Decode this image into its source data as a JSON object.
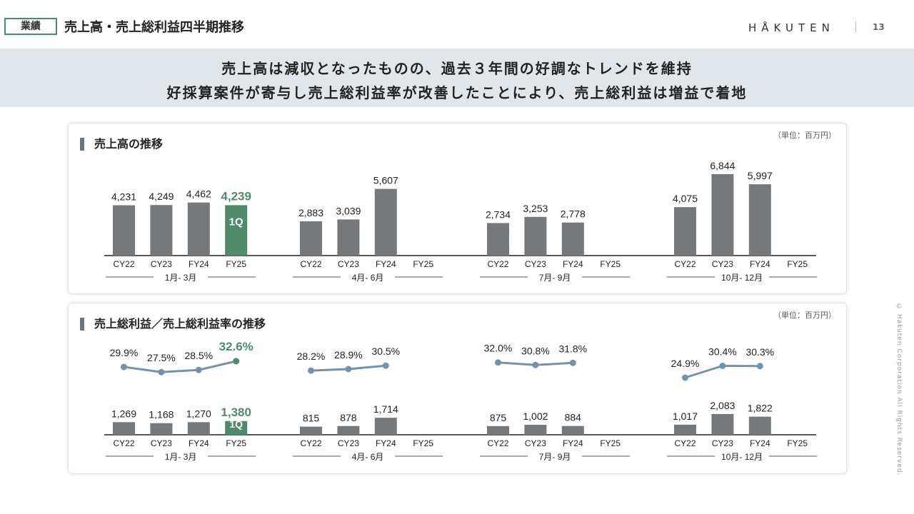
{
  "header": {
    "tag": "業績",
    "title": "売上高・売上総利益四半期推移",
    "logo": "HÅKUTEN",
    "page_number": "13"
  },
  "banner": {
    "line1": "売上高は減収となったものの、過去３年間の好調なトレンドを維持",
    "line2": "好採算案件が寄与し売上総利益率が改善したことにより、売上総利益は増益で着地"
  },
  "panel_sales": {
    "title": "売上高の推移",
    "unit": "（単位：百万円）"
  },
  "panel_profit": {
    "title": "売上総利益／売上総利益率の推移",
    "unit": "（単位：百万円）"
  },
  "copyright": "© Hakuten Corporation All Rights Reserved.",
  "colors": {
    "bar": "#75797c",
    "highlight": "#4f8a6c",
    "line": "#7593a8",
    "accent_border": "#4c8a6b"
  },
  "chart_data": [
    {
      "type": "bar",
      "title": "売上高の推移",
      "unit": "（単位：百万円）",
      "groups": [
        {
          "label": "1月- 3月",
          "categories": [
            "CY22",
            "CY23",
            "FY24",
            "FY25"
          ],
          "values": [
            4231,
            4249,
            4462,
            4239
          ],
          "labels": [
            "4,231",
            "4,249",
            "4,462",
            "4,239"
          ],
          "highlight_index": 3,
          "highlight_badge": "1Q"
        },
        {
          "label": "4月- 6月",
          "categories": [
            "CY22",
            "CY23",
            "FY24",
            "FY25"
          ],
          "values": [
            2883,
            3039,
            5607,
            null
          ],
          "labels": [
            "2,883",
            "3,039",
            "5,607",
            ""
          ]
        },
        {
          "label": "7月- 9月",
          "categories": [
            "CY22",
            "CY23",
            "FY24",
            "FY25"
          ],
          "values": [
            2734,
            3253,
            2778,
            null
          ],
          "labels": [
            "2,734",
            "3,253",
            "2,778",
            ""
          ]
        },
        {
          "label": "10月- 12月",
          "categories": [
            "CY22",
            "CY23",
            "FY24",
            "FY25"
          ],
          "values": [
            4075,
            6844,
            5997,
            null
          ],
          "labels": [
            "4,075",
            "6,844",
            "5,997",
            ""
          ]
        }
      ]
    },
    {
      "type": "bar+line",
      "title": "売上総利益／売上総利益率の推移",
      "unit": "（単位：百万円）",
      "groups": [
        {
          "label": "1月- 3月",
          "categories": [
            "CY22",
            "CY23",
            "FY24",
            "FY25"
          ],
          "values": [
            1269,
            1168,
            1270,
            1380
          ],
          "labels": [
            "1,269",
            "1,168",
            "1,270",
            "1,380"
          ],
          "rates": [
            29.9,
            27.5,
            28.5,
            32.6
          ],
          "rate_labels": [
            "29.9%",
            "27.5%",
            "28.5%",
            "32.6%"
          ],
          "highlight_index": 3,
          "highlight_badge": "1Q"
        },
        {
          "label": "4月- 6月",
          "categories": [
            "CY22",
            "CY23",
            "FY24",
            "FY25"
          ],
          "values": [
            815,
            878,
            1714,
            null
          ],
          "labels": [
            "815",
            "878",
            "1,714",
            ""
          ],
          "rates": [
            28.2,
            28.9,
            30.5,
            null
          ],
          "rate_labels": [
            "28.2%",
            "28.9%",
            "30.5%",
            ""
          ]
        },
        {
          "label": "7月- 9月",
          "categories": [
            "CY22",
            "CY23",
            "FY24",
            "FY25"
          ],
          "values": [
            875,
            1002,
            884,
            null
          ],
          "labels": [
            "875",
            "1,002",
            "884",
            ""
          ],
          "rates": [
            32.0,
            30.8,
            31.8,
            null
          ],
          "rate_labels": [
            "32.0%",
            "30.8%",
            "31.8%",
            ""
          ]
        },
        {
          "label": "10月- 12月",
          "categories": [
            "CY22",
            "CY23",
            "FY24",
            "FY25"
          ],
          "values": [
            1017,
            2083,
            1822,
            null
          ],
          "labels": [
            "1,017",
            "2,083",
            "1,822",
            ""
          ],
          "rates": [
            24.9,
            30.4,
            30.3,
            null
          ],
          "rate_labels": [
            "24.9%",
            "30.4%",
            "30.3%",
            ""
          ]
        }
      ]
    }
  ]
}
